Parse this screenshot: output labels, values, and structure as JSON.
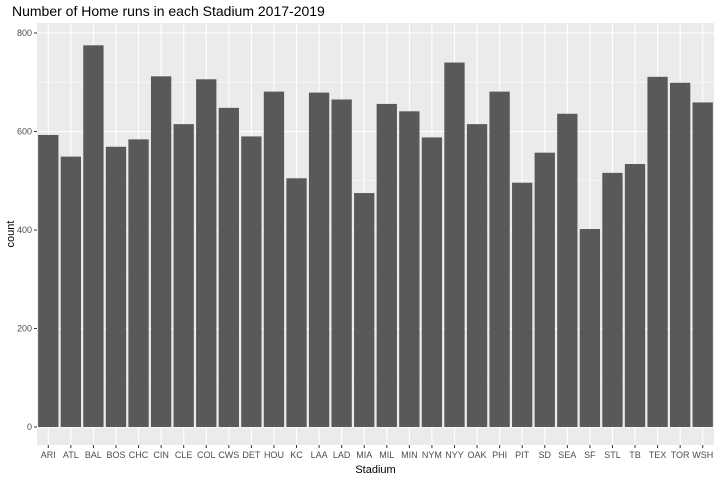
{
  "chart_data": {
    "type": "bar",
    "title": "Number of Home runs in each Stadium 2017-2019",
    "xlabel": "Stadium",
    "ylabel": "count",
    "ylim": [
      0,
      830
    ],
    "yticks": [
      0,
      200,
      400,
      600,
      800
    ],
    "grid": true,
    "bar_color": "#595959",
    "panel_color": "#ebebeb",
    "categories": [
      "ARI",
      "ATL",
      "BAL",
      "BOS",
      "CHC",
      "CIN",
      "CLE",
      "COL",
      "CWS",
      "DET",
      "HOU",
      "KC",
      "LAA",
      "LAD",
      "MIA",
      "MIL",
      "MIN",
      "NYM",
      "NYY",
      "OAK",
      "PHI",
      "PIT",
      "SD",
      "SEA",
      "SF",
      "STL",
      "TB",
      "TEX",
      "TOR",
      "WSH"
    ],
    "values": [
      593,
      549,
      775,
      569,
      584,
      712,
      615,
      706,
      648,
      590,
      681,
      505,
      679,
      665,
      475,
      656,
      641,
      588,
      740,
      615,
      681,
      496,
      557,
      636,
      402,
      516,
      534,
      711,
      699,
      659
    ]
  }
}
